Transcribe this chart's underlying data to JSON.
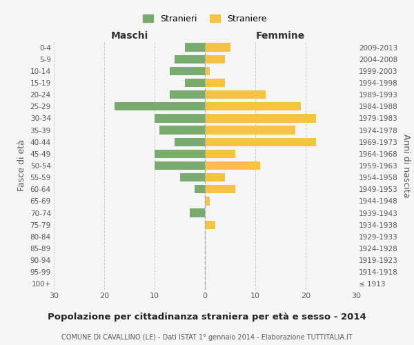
{
  "age_groups": [
    "0-4",
    "5-9",
    "10-14",
    "15-19",
    "20-24",
    "25-29",
    "30-34",
    "35-39",
    "40-44",
    "45-49",
    "50-54",
    "55-59",
    "60-64",
    "65-69",
    "70-74",
    "75-79",
    "80-84",
    "85-89",
    "90-94",
    "95-99",
    "100+"
  ],
  "birth_years": [
    "2009-2013",
    "2004-2008",
    "1999-2003",
    "1994-1998",
    "1989-1993",
    "1984-1988",
    "1979-1983",
    "1974-1978",
    "1969-1973",
    "1964-1968",
    "1959-1963",
    "1954-1958",
    "1949-1953",
    "1944-1948",
    "1939-1943",
    "1934-1938",
    "1929-1933",
    "1924-1928",
    "1919-1923",
    "1914-1918",
    "≤ 1913"
  ],
  "males": [
    4,
    6,
    7,
    4,
    7,
    18,
    10,
    9,
    6,
    10,
    10,
    5,
    2,
    0,
    3,
    0,
    0,
    0,
    0,
    0,
    0
  ],
  "females": [
    5,
    4,
    1,
    4,
    12,
    19,
    22,
    18,
    22,
    6,
    11,
    4,
    6,
    1,
    0,
    2,
    0,
    0,
    0,
    0,
    0
  ],
  "male_color": "#7aab6e",
  "female_color": "#f5c242",
  "background_color": "#f5f5f5",
  "grid_color": "#cccccc",
  "title": "Popolazione per cittadinanza straniera per età e sesso - 2014",
  "subtitle": "COMUNE DI CAVALLINO (LE) - Dati ISTAT 1° gennaio 2014 - Elaborazione TUTTITALIA.IT",
  "xlabel_left": "Maschi",
  "xlabel_right": "Femmine",
  "ylabel_left": "Fasce di età",
  "ylabel_right": "Anni di nascita",
  "xlim": 30,
  "legend_stranieri": "Stranieri",
  "legend_straniere": "Straniere"
}
